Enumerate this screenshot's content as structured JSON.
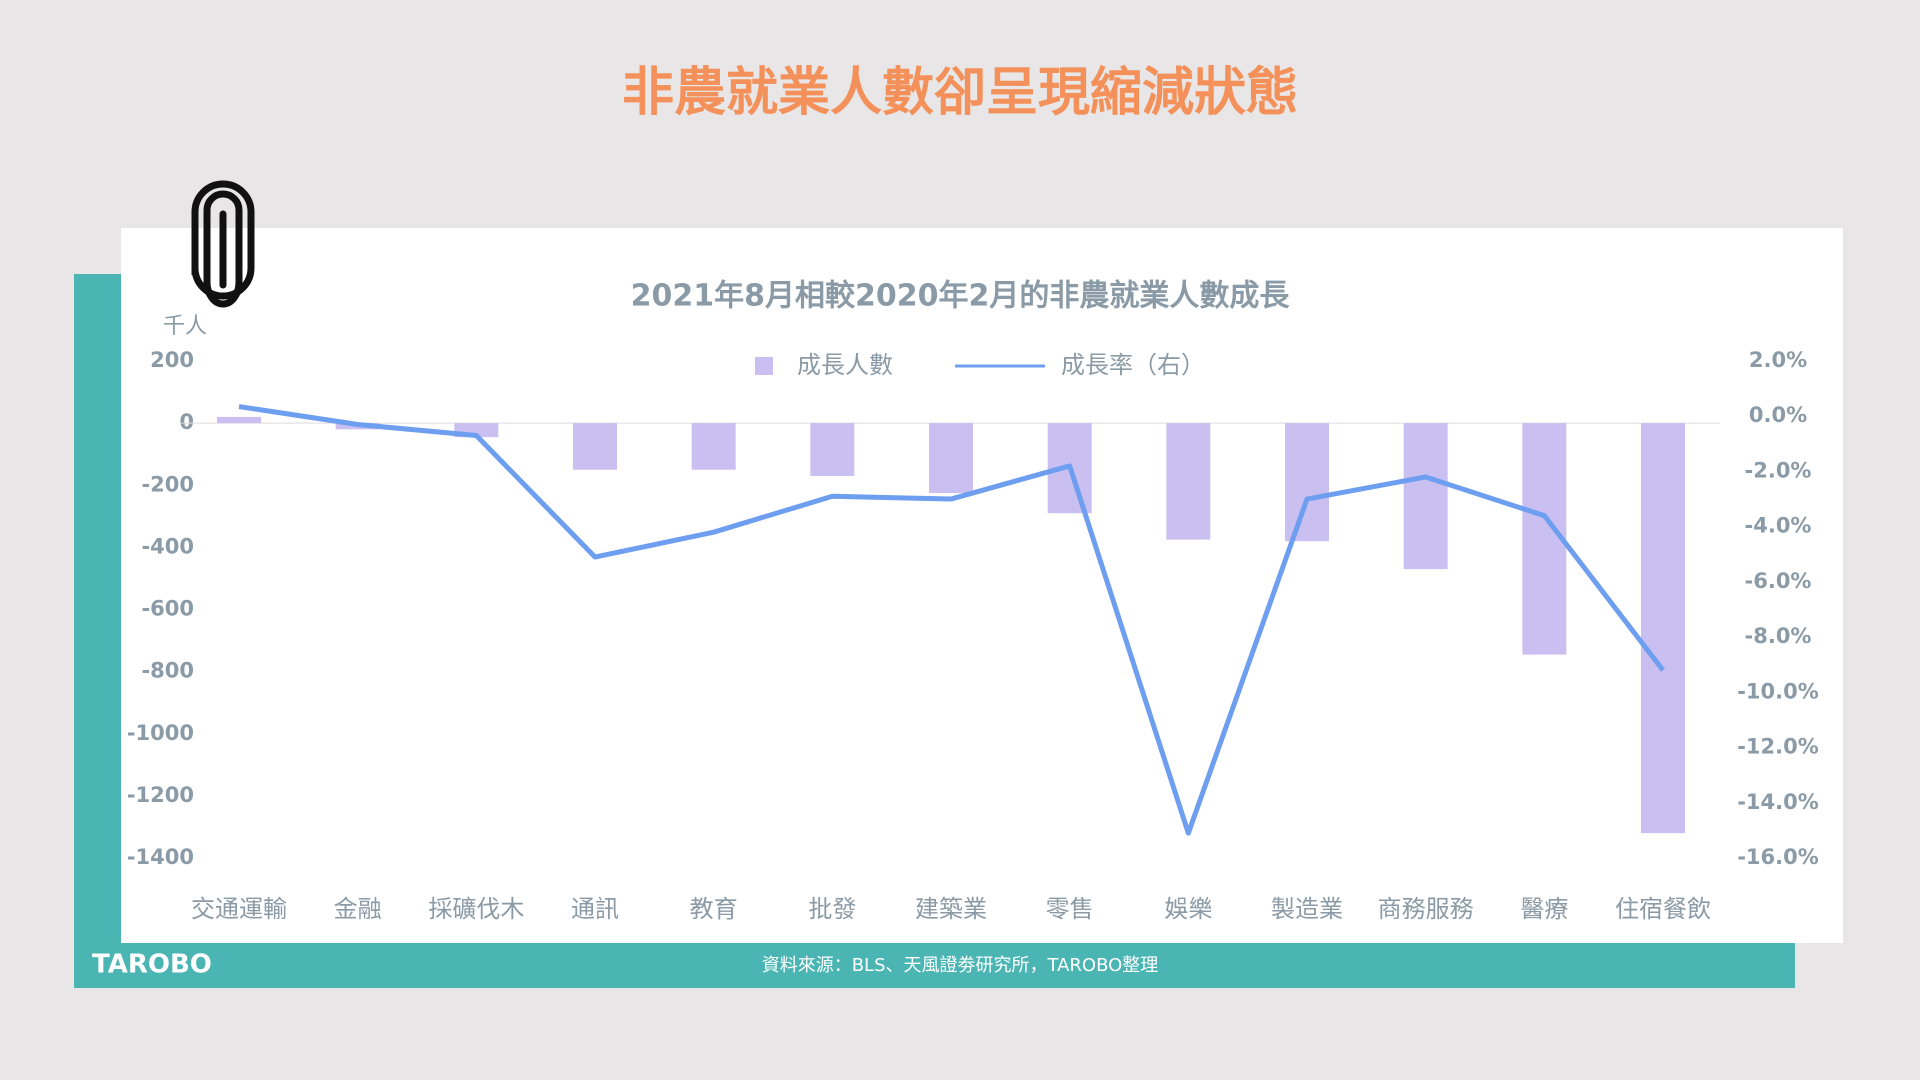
{
  "page_title": "非農就業人數卻呈現縮減狀態",
  "logo": "TAROBO",
  "source": "資料來源：BLS、天風證劵研究所，TAROBO整理",
  "chart_data": {
    "type": "bar_line",
    "title": "2021年8月相較2020年2月的非農就業人數成長",
    "y_label": "千人",
    "categories": [
      "交通運輸",
      "金融",
      "採礦伐木",
      "通訊",
      "教育",
      "批發",
      "建築業",
      "零售",
      "娛樂",
      "製造業",
      "商務服務",
      "醫療",
      "住宿餐飲"
    ],
    "series": [
      {
        "name": "成長人數",
        "type": "bar",
        "color": "#c9bff0",
        "values": [
          20,
          -20,
          -45,
          -150,
          -150,
          -170,
          -225,
          -290,
          -375,
          -380,
          -470,
          -745,
          -1320
        ]
      },
      {
        "name": "成長率（右）",
        "type": "line",
        "axis": "y2",
        "color": "#6d9ef0",
        "values": [
          0.35,
          -0.3,
          -0.7,
          -5.1,
          -4.2,
          -2.9,
          -3.0,
          -1.8,
          -15.1,
          -3.0,
          -2.2,
          -3.6,
          -9.2
        ]
      }
    ],
    "ylim": [
      -1400,
      200
    ],
    "yticks": [
      200,
      0,
      -200,
      -400,
      -600,
      -800,
      -1000,
      -1200,
      -1400
    ],
    "y2lim": [
      -16,
      2
    ],
    "y2ticks": [
      {
        "value": 2,
        "label": "2.0%"
      },
      {
        "value": 0,
        "label": "0.0%"
      },
      {
        "value": -2,
        "label": "-2.0%"
      },
      {
        "value": -4,
        "label": "-4.0%"
      },
      {
        "value": -6,
        "label": "-6.0%"
      },
      {
        "value": -8,
        "label": "-8.0%"
      },
      {
        "value": -10,
        "label": "-10.0%"
      },
      {
        "value": -12,
        "label": "-12.0%"
      },
      {
        "value": -14,
        "label": "-14.0%"
      },
      {
        "value": -16,
        "label": "-16.0%"
      }
    ],
    "zero_line": true
  }
}
